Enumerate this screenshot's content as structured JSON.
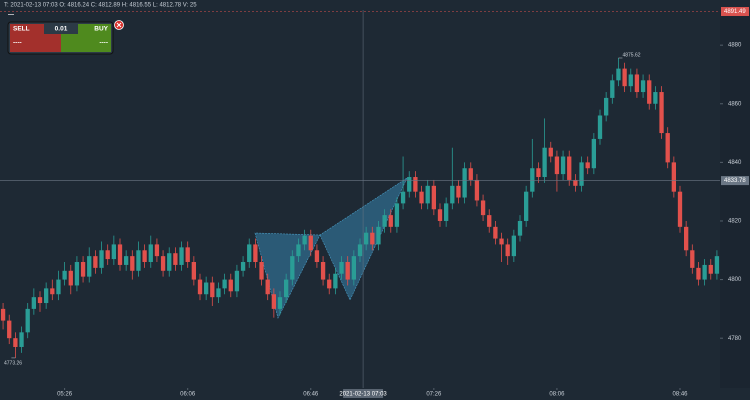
{
  "symbol_placeholder": "---",
  "readout": "T: 2021-02-13 07:03   O: 4816.24   C: 4812.89   H: 4816.55   L: 4812.78   V: 25",
  "trade_panel": {
    "sell_label": "SELL",
    "buy_label": "BUY",
    "lot": "0.01",
    "sell_price": "----",
    "buy_price": "----"
  },
  "chart_data": {
    "type": "candlestick",
    "categories": [
      null,
      null,
      null,
      null,
      null,
      null,
      null,
      null,
      null,
      null,
      "05:26",
      null,
      null,
      null,
      null,
      null,
      null,
      null,
      null,
      null,
      null,
      null,
      null,
      null,
      null,
      null,
      null,
      null,
      null,
      null,
      "06:06",
      null,
      null,
      null,
      null,
      null,
      null,
      null,
      null,
      null,
      null,
      null,
      null,
      null,
      null,
      null,
      null,
      null,
      null,
      null,
      "06:46",
      null,
      null,
      null,
      null,
      null,
      null,
      null,
      null,
      null,
      null,
      null,
      null,
      null,
      null,
      null,
      null,
      null,
      null,
      null,
      "07:26",
      null,
      null,
      null,
      null,
      null,
      null,
      null,
      null,
      null,
      null,
      null,
      null,
      null,
      null,
      null,
      null,
      null,
      null,
      null,
      "08:06",
      null,
      null,
      null,
      null,
      null,
      null,
      null,
      null,
      null,
      null,
      null,
      null,
      null,
      null,
      null,
      null,
      null,
      null,
      null,
      "08:46",
      null,
      null,
      null,
      null,
      null,
      null
    ],
    "ohlc": [
      [
        4790,
        4792,
        4783,
        4786
      ],
      [
        4786,
        4788,
        4778,
        4780
      ],
      [
        4780,
        4782,
        4773.26,
        4777
      ],
      [
        4777,
        4784,
        4775,
        4782
      ],
      [
        4782,
        4792,
        4780,
        4790
      ],
      [
        4790,
        4797,
        4788,
        4794
      ],
      [
        4794,
        4796,
        4789,
        4792
      ],
      [
        4792,
        4799,
        4790,
        4797
      ],
      [
        4797,
        4800,
        4793,
        4795
      ],
      [
        4795,
        4803,
        4793,
        4800
      ],
      [
        4800,
        4806,
        4798,
        4803
      ],
      [
        4803,
        4805,
        4795,
        4798
      ],
      [
        4798,
        4808,
        4796,
        4806
      ],
      [
        4806,
        4808,
        4799,
        4801
      ],
      [
        4801,
        4811,
        4799,
        4808
      ],
      [
        4808,
        4810,
        4802,
        4804
      ],
      [
        4804,
        4813,
        4802,
        4810
      ],
      [
        4810,
        4812,
        4805,
        4807
      ],
      [
        4807,
        4815,
        4805,
        4812
      ],
      [
        4812,
        4814,
        4803,
        4805
      ],
      [
        4805,
        4810,
        4803,
        4808
      ],
      [
        4808,
        4810,
        4800,
        4803
      ],
      [
        4803,
        4813,
        4801,
        4810
      ],
      [
        4810,
        4812,
        4804,
        4806
      ],
      [
        4806,
        4815,
        4804,
        4812
      ],
      [
        4812,
        4814,
        4806,
        4808
      ],
      [
        4808,
        4810,
        4801,
        4803
      ],
      [
        4803,
        4811,
        4801,
        4809
      ],
      [
        4809,
        4811,
        4803,
        4805
      ],
      [
        4805,
        4813,
        4803,
        4811
      ],
      [
        4811,
        4813,
        4804,
        4806
      ],
      [
        4806,
        4808,
        4798,
        4800
      ],
      [
        4800,
        4802,
        4793,
        4795
      ],
      [
        4795,
        4801,
        4793,
        4799
      ],
      [
        4799,
        4801,
        4791,
        4794
      ],
      [
        4794,
        4799,
        4792,
        4797
      ],
      [
        4797,
        4802,
        4795,
        4800
      ],
      [
        4800,
        4802,
        4794,
        4796
      ],
      [
        4796,
        4805,
        4794,
        4803
      ],
      [
        4803,
        4808,
        4801,
        4806
      ],
      [
        4806,
        4814,
        4804,
        4812
      ],
      [
        4812,
        4814,
        4804,
        4806
      ],
      [
        4806,
        4808,
        4798,
        4800
      ],
      [
        4800,
        4802,
        4793,
        4795
      ],
      [
        4795,
        4797,
        4787,
        4790
      ],
      [
        4790,
        4796,
        4788,
        4794
      ],
      [
        4794,
        4802,
        4792,
        4800
      ],
      [
        4800,
        4810,
        4798,
        4808
      ],
      [
        4808,
        4814,
        4806,
        4812
      ],
      [
        4812,
        4817,
        4810,
        4815
      ],
      [
        4815,
        4817,
        4808,
        4810
      ],
      [
        4810,
        4812,
        4804,
        4806
      ],
      [
        4806,
        4808,
        4798,
        4800
      ],
      [
        4800,
        4802,
        4795,
        4797
      ],
      [
        4797,
        4804,
        4795,
        4802
      ],
      [
        4802,
        4808,
        4800,
        4806
      ],
      [
        4806,
        4808,
        4798,
        4800
      ],
      [
        4800,
        4810,
        4798,
        4808
      ],
      [
        4808,
        4814,
        4806,
        4812
      ],
      [
        4812,
        4818,
        4810,
        4816
      ],
      [
        4816,
        4818,
        4810,
        4812
      ],
      [
        4812,
        4820,
        4810,
        4818
      ],
      [
        4818,
        4824,
        4816,
        4822
      ],
      [
        4822,
        4824,
        4816,
        4818
      ],
      [
        4818,
        4828,
        4816,
        4826
      ],
      [
        4826,
        4842,
        4824,
        4830
      ],
      [
        4830,
        4837,
        4828,
        4835
      ],
      [
        4835,
        4837,
        4828,
        4830
      ],
      [
        4830,
        4832,
        4824,
        4826
      ],
      [
        4826,
        4834,
        4824,
        4832
      ],
      [
        4832,
        4834,
        4822,
        4824
      ],
      [
        4824,
        4826,
        4818,
        4820
      ],
      [
        4820,
        4828,
        4818,
        4826
      ],
      [
        4826,
        4845,
        4824,
        4832
      ],
      [
        4832,
        4834,
        4826,
        4828
      ],
      [
        4828,
        4840,
        4826,
        4838
      ],
      [
        4838,
        4840,
        4832,
        4834
      ],
      [
        4834,
        4836,
        4825,
        4827
      ],
      [
        4827,
        4829,
        4820,
        4822
      ],
      [
        4822,
        4824,
        4816,
        4818
      ],
      [
        4818,
        4820,
        4812,
        4814
      ],
      [
        4814,
        4816,
        4806,
        4812
      ],
      [
        4812,
        4814,
        4805,
        4808
      ],
      [
        4808,
        4817,
        4806,
        4815
      ],
      [
        4815,
        4822,
        4813,
        4820
      ],
      [
        4820,
        4832,
        4818,
        4830
      ],
      [
        4830,
        4848,
        4828,
        4838
      ],
      [
        4838,
        4840,
        4833,
        4835
      ],
      [
        4835,
        4855,
        4833,
        4845
      ],
      [
        4845,
        4847,
        4840,
        4842
      ],
      [
        4842,
        4844,
        4830,
        4836
      ],
      [
        4836,
        4844,
        4834,
        4842
      ],
      [
        4842,
        4844,
        4832,
        4834
      ],
      [
        4834,
        4836,
        4830,
        4832
      ],
      [
        4832,
        4842,
        4830,
        4840
      ],
      [
        4840,
        4842,
        4836,
        4838
      ],
      [
        4838,
        4850,
        4836,
        4848
      ],
      [
        4848,
        4858,
        4846,
        4856
      ],
      [
        4856,
        4864,
        4854,
        4862
      ],
      [
        4862,
        4870,
        4860,
        4868
      ],
      [
        4868,
        4875.62,
        4866,
        4872
      ],
      [
        4872,
        4874,
        4864,
        4866
      ],
      [
        4866,
        4872,
        4864,
        4870
      ],
      [
        4870,
        4872,
        4862,
        4864
      ],
      [
        4864,
        4870,
        4862,
        4868
      ],
      [
        4868,
        4870,
        4858,
        4860
      ],
      [
        4860,
        4866,
        4858,
        4864
      ],
      [
        4864,
        4866,
        4848,
        4850
      ],
      [
        4850,
        4852,
        4838,
        4840
      ],
      [
        4840,
        4842,
        4828,
        4830
      ],
      [
        4830,
        4832,
        4816,
        4818
      ],
      [
        4818,
        4820,
        4808,
        4810
      ],
      [
        4810,
        4812,
        4802,
        4804
      ],
      [
        4804,
        4806,
        4798,
        4800
      ],
      [
        4800,
        4807,
        4798,
        4805
      ],
      [
        4805,
        4807,
        4800,
        4802
      ],
      [
        4802,
        4810,
        4800,
        4808
      ]
    ],
    "up_color": "#2a9d96",
    "down_color": "#e2514c",
    "ylim": [
      4763,
      4892
    ],
    "yticks": [
      4780,
      4800,
      4820,
      4840,
      4860,
      4880
    ],
    "price_lines": [
      {
        "value": 4891.49,
        "color": "#d9534f"
      },
      {
        "value": 4833.78,
        "color": "#6b7785"
      }
    ],
    "crosshair_time": "2021-02-13 07:03",
    "max_label": 4875.62,
    "min_label": 4773.26
  }
}
